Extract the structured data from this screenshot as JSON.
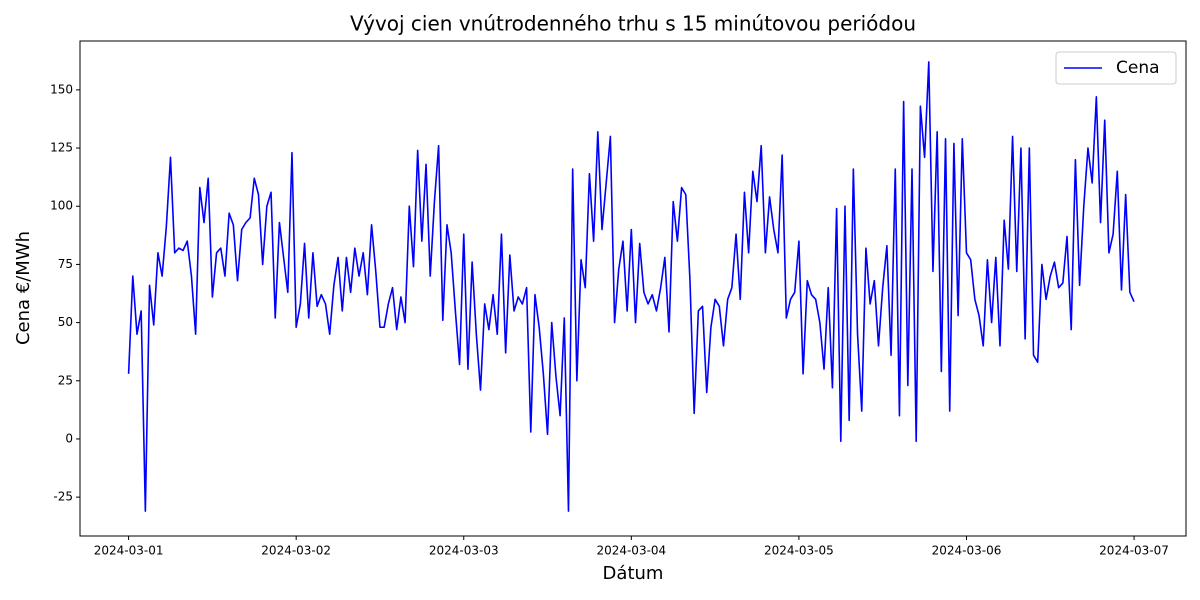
{
  "chart_data": {
    "type": "line",
    "title": "Vývoj cien vnútrodenného trhu s 15 minútovou periódou",
    "xlabel": "Dátum",
    "ylabel": "Cena €/MWh",
    "legend": "upper right",
    "grid": false,
    "xlim": [
      -0.29,
      6.31
    ],
    "ylim": [
      -41.7,
      171
    ],
    "xticks": [
      {
        "value": 0,
        "label": "2024-03-01"
      },
      {
        "value": 1,
        "label": "2024-03-02"
      },
      {
        "value": 2,
        "label": "2024-03-03"
      },
      {
        "value": 3,
        "label": "2024-03-04"
      },
      {
        "value": 4,
        "label": "2024-03-05"
      },
      {
        "value": 5,
        "label": "2024-03-06"
      },
      {
        "value": 6,
        "label": "2024-03-07"
      }
    ],
    "yticks": [
      -25,
      0,
      25,
      50,
      75,
      100,
      125,
      150
    ],
    "x": [
      0,
      0.025,
      0.05,
      0.075,
      0.1,
      0.125,
      0.15,
      0.175,
      0.2,
      0.225,
      0.25,
      0.275,
      0.3,
      0.325,
      0.35,
      0.375,
      0.4,
      0.425,
      0.45,
      0.475,
      0.5,
      0.525,
      0.55,
      0.575,
      0.6,
      0.625,
      0.65,
      0.675,
      0.7,
      0.725,
      0.75,
      0.775,
      0.8,
      0.825,
      0.85,
      0.875,
      0.9,
      0.925,
      0.95,
      0.975,
      1,
      1.025,
      1.05,
      1.075,
      1.1,
      1.125,
      1.15,
      1.175,
      1.2,
      1.225,
      1.25,
      1.275,
      1.3,
      1.325,
      1.35,
      1.375,
      1.4,
      1.425,
      1.45,
      1.475,
      1.5,
      1.525,
      1.55,
      1.575,
      1.6,
      1.625,
      1.65,
      1.675,
      1.7,
      1.725,
      1.75,
      1.775,
      1.8,
      1.825,
      1.85,
      1.875,
      1.9,
      1.925,
      1.95,
      1.975,
      2,
      2.025,
      2.05,
      2.075,
      2.1,
      2.125,
      2.15,
      2.175,
      2.2,
      2.225,
      2.25,
      2.275,
      2.3,
      2.325,
      2.35,
      2.375,
      2.4,
      2.425,
      2.45,
      2.475,
      2.5,
      2.525,
      2.55,
      2.575,
      2.6,
      2.625,
      2.65,
      2.675,
      2.7,
      2.725,
      2.75,
      2.775,
      2.8,
      2.825,
      2.85,
      2.875,
      2.9,
      2.925,
      2.95,
      2.975,
      3,
      3.025,
      3.05,
      3.075,
      3.1,
      3.125,
      3.15,
      3.175,
      3.2,
      3.225,
      3.25,
      3.275,
      3.3,
      3.325,
      3.35,
      3.375,
      3.4,
      3.425,
      3.45,
      3.475,
      3.5,
      3.525,
      3.55,
      3.575,
      3.6,
      3.625,
      3.65,
      3.675,
      3.7,
      3.725,
      3.75,
      3.775,
      3.8,
      3.825,
      3.85,
      3.875,
      3.9,
      3.925,
      3.95,
      3.975,
      4,
      4.025,
      4.05,
      4.075,
      4.1,
      4.125,
      4.15,
      4.175,
      4.2,
      4.225,
      4.25,
      4.275,
      4.3,
      4.325,
      4.35,
      4.375,
      4.4,
      4.425,
      4.45,
      4.475,
      4.5,
      4.525,
      4.55,
      4.575,
      4.6,
      4.625,
      4.65,
      4.675,
      4.7,
      4.725,
      4.75,
      4.775,
      4.8,
      4.825,
      4.85,
      4.875,
      4.9,
      4.925,
      4.95,
      4.975,
      5,
      5.025,
      5.05,
      5.075,
      5.1,
      5.125,
      5.15,
      5.175,
      5.2,
      5.225,
      5.25,
      5.275,
      5.3,
      5.325,
      5.35,
      5.375,
      5.4,
      5.425,
      5.45,
      5.475,
      5.5,
      5.525,
      5.55,
      5.575,
      5.6,
      5.625,
      5.65,
      5.675,
      5.7,
      5.725,
      5.75,
      5.775,
      5.8,
      5.825,
      5.85,
      5.875,
      5.9,
      5.925,
      5.95,
      5.975,
      6
    ],
    "series": [
      {
        "name": "Cena",
        "color": "#0000ff",
        "values": [
          28,
          70,
          45,
          55,
          -31,
          66,
          49,
          80,
          70,
          91,
          121,
          80,
          82,
          81,
          85,
          70,
          45,
          108,
          93,
          112,
          61,
          80,
          82,
          70,
          97,
          92,
          68,
          90,
          93,
          95,
          112,
          105,
          75,
          100,
          106,
          52,
          93,
          78,
          63,
          123,
          48,
          58,
          84,
          52,
          80,
          57,
          62,
          58,
          45,
          66,
          78,
          55,
          78,
          63,
          82,
          70,
          80,
          62,
          92,
          72,
          48,
          48,
          58,
          65,
          47,
          61,
          50,
          100,
          74,
          124,
          85,
          118,
          70,
          102,
          126,
          51,
          92,
          80,
          55,
          32,
          88,
          30,
          76,
          45,
          21,
          58,
          47,
          62,
          45,
          88,
          37,
          79,
          55,
          61,
          58,
          65,
          3,
          62,
          48,
          28,
          2,
          50,
          27,
          10,
          52,
          -31,
          116,
          25,
          77,
          65,
          114,
          85,
          132,
          90,
          110,
          130,
          50,
          73,
          85,
          55,
          90,
          50,
          84,
          63,
          58,
          62,
          55,
          65,
          78,
          46,
          102,
          85,
          108,
          105,
          68,
          11,
          55,
          57,
          20,
          48,
          60,
          57,
          40,
          60,
          65,
          88,
          60,
          106,
          80,
          115,
          102,
          126,
          80,
          104,
          90,
          80,
          122,
          52,
          60,
          63,
          85,
          28,
          68,
          62,
          60,
          50,
          30,
          65,
          22,
          99,
          -1,
          100,
          8,
          116,
          45,
          12,
          82,
          58,
          68,
          40,
          65,
          83,
          36,
          116,
          10,
          145,
          23,
          116,
          -1,
          143,
          121,
          162,
          72,
          132,
          29,
          129,
          12,
          127,
          53,
          129,
          80,
          77,
          60,
          53,
          40,
          77,
          50,
          78,
          40,
          94,
          73,
          130,
          72,
          125,
          43,
          125,
          36,
          33,
          75,
          60,
          70,
          76,
          65,
          67,
          87,
          47,
          120,
          66,
          100,
          125,
          110,
          147,
          93,
          137,
          80,
          88,
          115,
          64,
          105,
          63,
          59
        ]
      }
    ]
  }
}
